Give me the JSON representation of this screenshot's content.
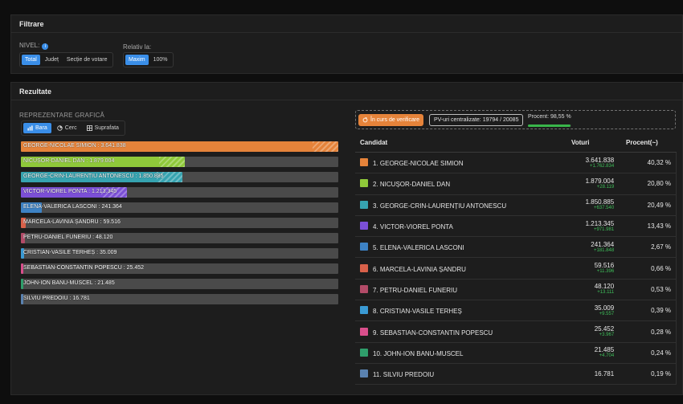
{
  "filters": {
    "title": "Filtrare",
    "level_label": "NIVEL:",
    "level_info": "i",
    "level_options": [
      "Total",
      "Județ",
      "Secție de votare"
    ],
    "relative_label": "Relativ la:",
    "relative_options": [
      "Maxim",
      "100%"
    ]
  },
  "results": {
    "title": "Rezultate",
    "vis_label": "REPREZENTARE GRAFICĂ",
    "vis_options": [
      "Bara",
      "Cerc",
      "Suprafata"
    ],
    "status_chip": "În curs de verificare",
    "pv_chip": "PV-uri centralizate: 19794 / 20085",
    "progress_label": "Procent: 98,55 %",
    "progress_value": 98.55
  },
  "chart_data": {
    "type": "bar",
    "orientation": "horizontal",
    "max": 3641838,
    "categories": [
      "GEORGE-NICOLAE SIMION",
      "NICUȘOR-DANIEL DAN",
      "GEORGE-CRIN-LAURENȚIU ANTONESCU",
      "VICTOR-VIOREL PONTA",
      "ELENA-VALERICA LASCONI",
      "MARCELA-LAVINIA ȘANDRU",
      "PETRU-DANIEL FUNERIU",
      "CRISTIAN-VASILE TERHEȘ",
      "SEBASTIAN-CONSTANTIN POPESCU",
      "JOHN-ION BANU-MUSCEL",
      "SILVIU PREDOIU"
    ],
    "values": [
      3641838,
      1879004,
      1850885,
      1213345,
      241364,
      59516,
      48120,
      35009,
      25452,
      21485,
      16781
    ],
    "labels": [
      "GEORGE-NICOLAE SIMION : 3.641.838",
      "NICUȘOR-DANIEL DAN : 1.879.004",
      "GEORGE-CRIN-LAURENȚIU ANTONESCU : 1.850.885",
      "VICTOR-VIOREL PONTA : 1.213.345",
      "ELENA-VALERICA LASCONI : 241.364",
      "MARCELA-LAVINIA ȘANDRU : 59.516",
      "PETRU-DANIEL FUNERIU : 48.120",
      "CRISTIAN-VASILE TERHEȘ : 35.009",
      "SEBASTIAN-CONSTANTIN POPESCU : 25.452",
      "JOHN-ION BANU-MUSCEL : 21.485",
      "SILVIU PREDOIU : 16.781"
    ],
    "colors": [
      "#e5833a",
      "#8fc93a",
      "#36a3b0",
      "#7b4fd6",
      "#3d82c4",
      "#d9614a",
      "#b34b68",
      "#3a9ad4",
      "#d94f8c",
      "#2f9e6b",
      "#5a82b0"
    ]
  },
  "table": {
    "headers": [
      "Candidat",
      "Voturi",
      "Procent(~)"
    ],
    "rows": [
      {
        "name": "1. GEORGE-NICOLAE SIMION",
        "votes": "3.641.838",
        "delta": "+1.762.834",
        "pct": "40,32 %",
        "color": "#e5833a"
      },
      {
        "name": "2. NICUȘOR-DANIEL DAN",
        "votes": "1.879.004",
        "delta": "+28.119",
        "pct": "20,80 %",
        "color": "#8fc93a"
      },
      {
        "name": "3. GEORGE-CRIN-LAURENȚIU ANTONESCU",
        "votes": "1.850.885",
        "delta": "+637.540",
        "pct": "20,49 %",
        "color": "#36a3b0"
      },
      {
        "name": "4. VICTOR-VIOREL PONTA",
        "votes": "1.213.345",
        "delta": "+971.981",
        "pct": "13,43 %",
        "color": "#7b4fd6"
      },
      {
        "name": "5. ELENA-VALERICA LASCONI",
        "votes": "241.364",
        "delta": "+181.848",
        "pct": "2,67 %",
        "color": "#3d82c4"
      },
      {
        "name": "6. MARCELA-LAVINIA ȘANDRU",
        "votes": "59.516",
        "delta": "+11.396",
        "pct": "0,66 %",
        "color": "#d9614a"
      },
      {
        "name": "7. PETRU-DANIEL FUNERIU",
        "votes": "48.120",
        "delta": "+13.111",
        "pct": "0,53 %",
        "color": "#b34b68"
      },
      {
        "name": "8. CRISTIAN-VASILE TERHEȘ",
        "votes": "35.009",
        "delta": "+9.557",
        "pct": "0,39 %",
        "color": "#3a9ad4"
      },
      {
        "name": "9. SEBASTIAN-CONSTANTIN POPESCU",
        "votes": "25.452",
        "delta": "+3.967",
        "pct": "0,28 %",
        "color": "#d94f8c"
      },
      {
        "name": "10. JOHN-ION BANU-MUSCEL",
        "votes": "21.485",
        "delta": "+4.704",
        "pct": "0,24 %",
        "color": "#2f9e6b"
      },
      {
        "name": "11. SILVIU PREDOIU",
        "votes": "16.781",
        "delta": "",
        "pct": "0,19 %",
        "color": "#5a82b0"
      }
    ]
  }
}
